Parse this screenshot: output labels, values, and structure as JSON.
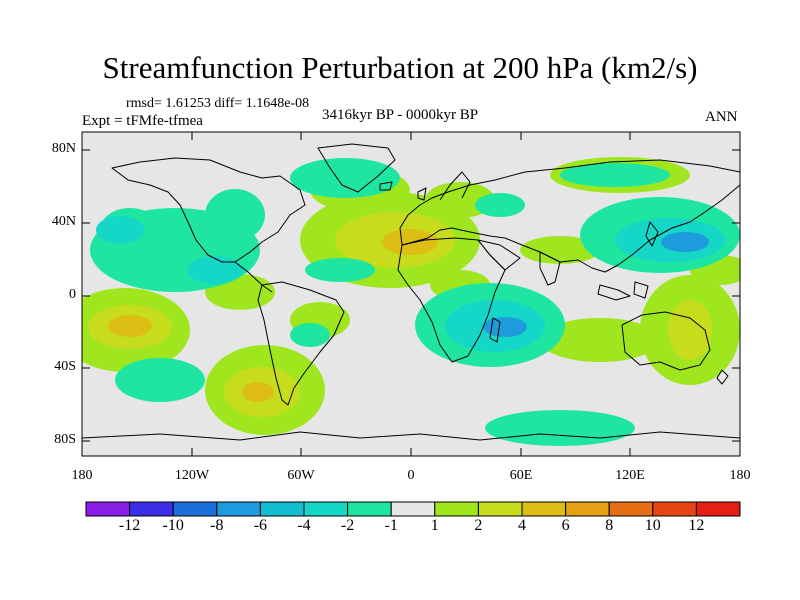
{
  "title": "Streamfunction Perturbation at 200 hPa (km2/s)",
  "stats": "rmsd= 1.61253 diff= 1.1648e-08",
  "period": "3416kyr BP - 0000kyr BP",
  "expt": "Expt = tFMfe-tfmea",
  "season": "ANN",
  "lat_labels": [
    "80N",
    "40N",
    "0",
    "40S",
    "80S"
  ],
  "lon_labels": [
    "180",
    "120W",
    "60W",
    "0",
    "60E",
    "120E",
    "180"
  ],
  "colorbar": {
    "labels": [
      "-12",
      "-10",
      "-8",
      "-6",
      "-4",
      "-2",
      "-1",
      "1",
      "2",
      "4",
      "6",
      "8",
      "10",
      "12"
    ],
    "colors": [
      "#8a1ee6",
      "#3c2ee6",
      "#1c6edc",
      "#1e9bdc",
      "#14bed2",
      "#14d7c8",
      "#1ee6a0",
      "#e6e6e6",
      "#9fe61e",
      "#c8dc1e",
      "#dcbe14",
      "#e6a014",
      "#e66e14",
      "#e64614",
      "#e61e14"
    ]
  },
  "colors": {
    "background": "#e6e6e6",
    "coast": "#000000"
  }
}
